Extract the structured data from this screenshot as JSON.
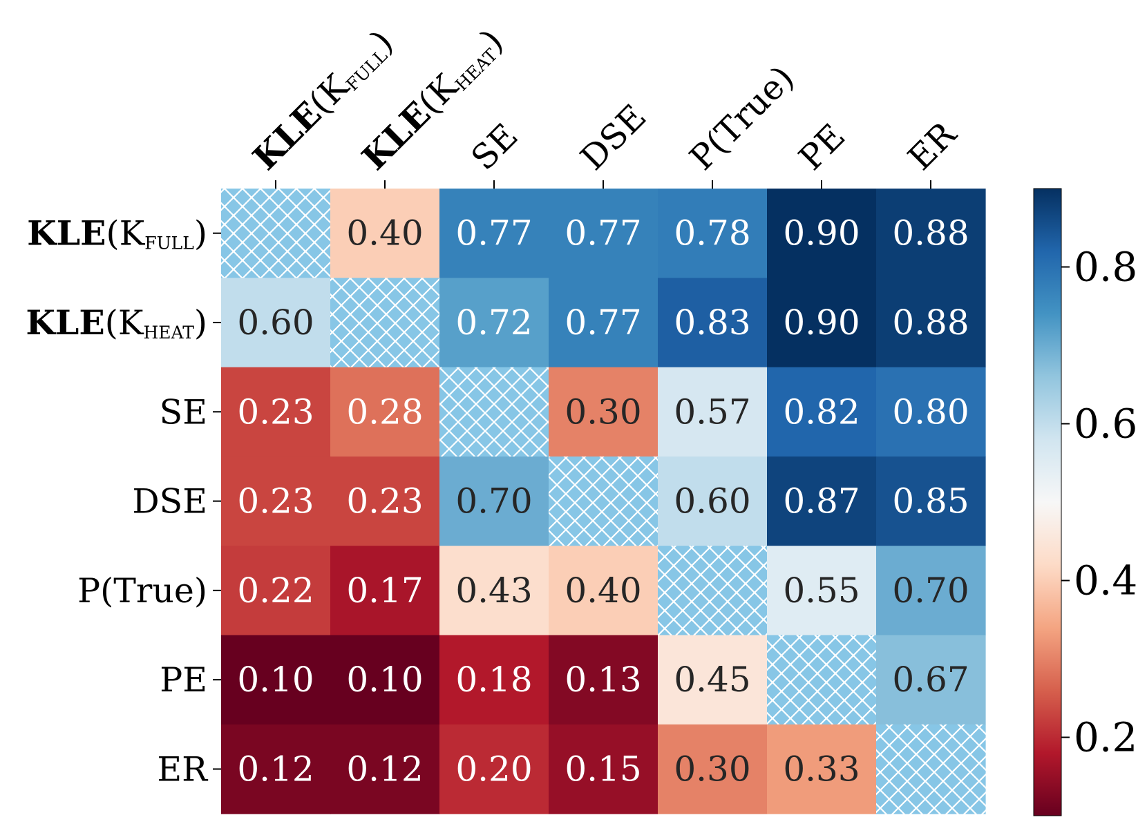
{
  "chart_data": {
    "type": "heatmap",
    "title": "",
    "xlabel": "",
    "ylabel": "",
    "x_labels": [
      {
        "main": "KLE",
        "rest": "(K",
        "sub": "FULL",
        "close": ")"
      },
      {
        "main": "KLE",
        "rest": "(K",
        "sub": "HEAT",
        "close": ")"
      },
      {
        "main": "",
        "rest": "SE",
        "sub": "",
        "close": ""
      },
      {
        "main": "",
        "rest": "DSE",
        "sub": "",
        "close": ""
      },
      {
        "main": "",
        "rest": "P(True)",
        "sub": "",
        "close": ""
      },
      {
        "main": "",
        "rest": "PE",
        "sub": "",
        "close": ""
      },
      {
        "main": "",
        "rest": "ER",
        "sub": "",
        "close": ""
      }
    ],
    "y_labels": [
      {
        "main": "KLE",
        "rest": "(K",
        "sub": "FULL",
        "close": ")"
      },
      {
        "main": "KLE",
        "rest": "(K",
        "sub": "HEAT",
        "close": ")"
      },
      {
        "main": "",
        "rest": "SE",
        "sub": "",
        "close": ""
      },
      {
        "main": "",
        "rest": "DSE",
        "sub": "",
        "close": ""
      },
      {
        "main": "",
        "rest": "P(True)",
        "sub": "",
        "close": ""
      },
      {
        "main": "",
        "rest": "PE",
        "sub": "",
        "close": ""
      },
      {
        "main": "",
        "rest": "ER",
        "sub": "",
        "close": ""
      }
    ],
    "values": [
      [
        null,
        0.4,
        0.77,
        0.77,
        0.78,
        0.9,
        0.88
      ],
      [
        0.6,
        null,
        0.72,
        0.77,
        0.83,
        0.9,
        0.88
      ],
      [
        0.23,
        0.28,
        null,
        0.3,
        0.57,
        0.82,
        0.8
      ],
      [
        0.23,
        0.23,
        0.7,
        null,
        0.6,
        0.87,
        0.85
      ],
      [
        0.22,
        0.17,
        0.43,
        0.4,
        null,
        0.55,
        0.7
      ],
      [
        0.1,
        0.1,
        0.18,
        0.13,
        0.45,
        null,
        0.67
      ],
      [
        0.12,
        0.12,
        0.2,
        0.15,
        0.3,
        0.33,
        null
      ]
    ],
    "diagonal_fill": "hatched",
    "diagonal_color": "#87c6e6",
    "colormap": "RdBu",
    "vmin": 0.1,
    "vmax": 0.9,
    "colorbar": {
      "ticks": [
        0.2,
        0.4,
        0.6,
        0.8
      ],
      "tick_labels": [
        "0.2",
        "0.4",
        "0.6",
        "0.8"
      ],
      "placement": "right"
    },
    "grid": false,
    "value_format": "2 decimals"
  }
}
